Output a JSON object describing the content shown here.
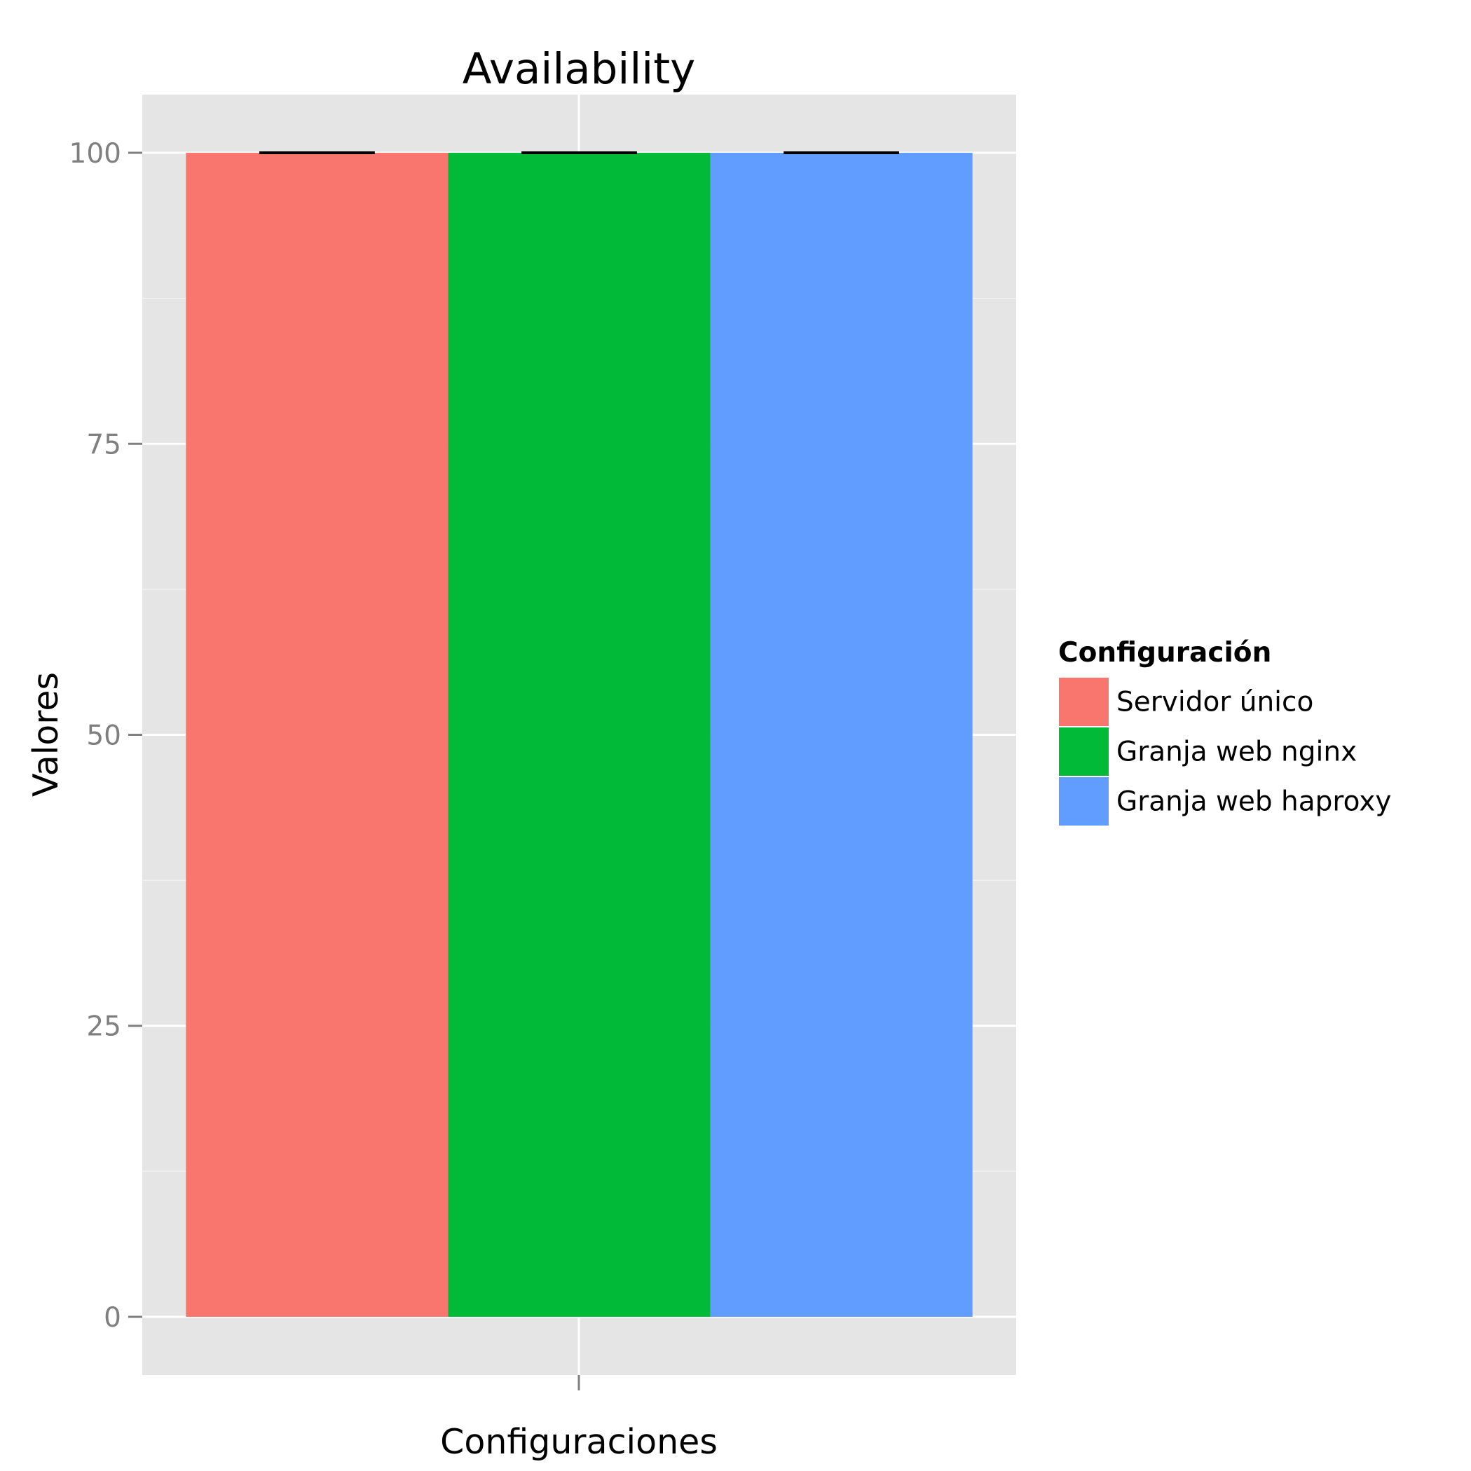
{
  "chart_data": {
    "type": "bar",
    "title": "Availability",
    "xlabel": "Configuraciones",
    "ylabel": "Valores",
    "ylim": [
      -5,
      105
    ],
    "y_ticks": [
      0,
      25,
      50,
      75,
      100
    ],
    "y_tick_labels": [
      "0",
      "25",
      "50",
      "75",
      "100"
    ],
    "grid": true,
    "legend": {
      "title": "Configuración",
      "position": "right"
    },
    "series": [
      {
        "name": "Servidor único",
        "value": 100,
        "error": 0,
        "color": "#F8766D"
      },
      {
        "name": "Granja web nginx",
        "value": 100,
        "error": 0,
        "color": "#00BA38"
      },
      {
        "name": "Granja web haproxy",
        "value": 100,
        "error": 0,
        "color": "#619CFF"
      }
    ],
    "colors": {
      "panel_background": "#E5E5E5",
      "grid": "#FFFFFF",
      "tick": "#7F7F7F",
      "error_bar": "#000000"
    }
  }
}
